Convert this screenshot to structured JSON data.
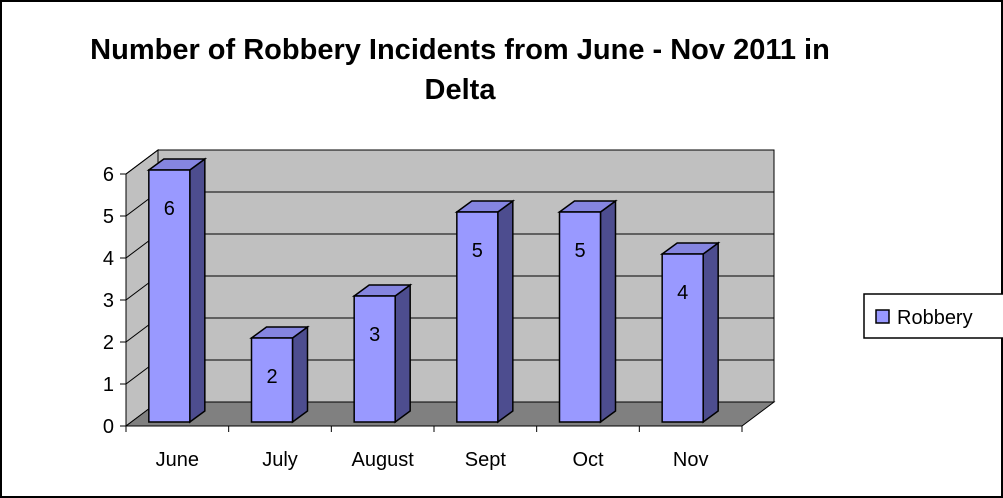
{
  "chart_data": {
    "type": "bar",
    "title": "Number of Robbery Incidents from June - Nov 2011 in Delta",
    "categories": [
      "June",
      "July",
      "August",
      "Sept",
      "Oct",
      "Nov"
    ],
    "series": [
      {
        "name": "Robbery",
        "values": [
          6,
          2,
          3,
          5,
          5,
          4
        ]
      }
    ],
    "ylim": [
      0,
      6
    ],
    "yticks": [
      0,
      1,
      2,
      3,
      4,
      5,
      6
    ],
    "grid": true,
    "legend": "right",
    "three_d": true,
    "data_labels": true,
    "colors": {
      "bar_front": "#9999ff",
      "bar_top": "#8585e0",
      "bar_side": "#4d4d8f",
      "wall": "#c0c0c0",
      "floor": "#808080",
      "gridline": "#000000"
    }
  }
}
